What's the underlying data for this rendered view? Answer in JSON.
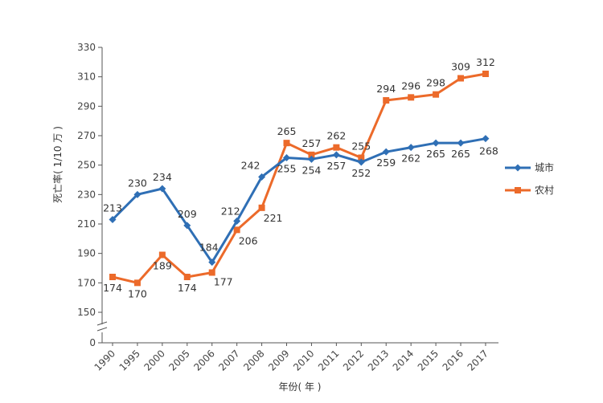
{
  "chart_data": {
    "type": "line",
    "title": "",
    "xlabel": "年份( 年 )",
    "ylabel": "死亡率( 1/10 万 )",
    "x": [
      "1990",
      "1995",
      "2000",
      "2005",
      "2006",
      "2007",
      "2008",
      "2009",
      "2010",
      "2011",
      "2012",
      "2013",
      "2014",
      "2015",
      "2016",
      "2017"
    ],
    "y_ticks": [
      0,
      150,
      170,
      190,
      210,
      230,
      250,
      270,
      290,
      310,
      330
    ],
    "ylim": [
      150,
      330
    ],
    "axis_break": true,
    "grid": false,
    "legend_position": "right",
    "series": [
      {
        "name": "城市",
        "color": "#2f6fb5",
        "marker": "diamond",
        "values": [
          213,
          230,
          234,
          209,
          184,
          212,
          242,
          255,
          254,
          257,
          252,
          259,
          262,
          265,
          265,
          268
        ]
      },
      {
        "name": "农村",
        "color": "#ec6a2a",
        "marker": "square",
        "values": [
          174,
          170,
          189,
          174,
          177,
          206,
          221,
          265,
          257,
          262,
          255,
          294,
          296,
          298,
          309,
          312
        ]
      }
    ]
  }
}
